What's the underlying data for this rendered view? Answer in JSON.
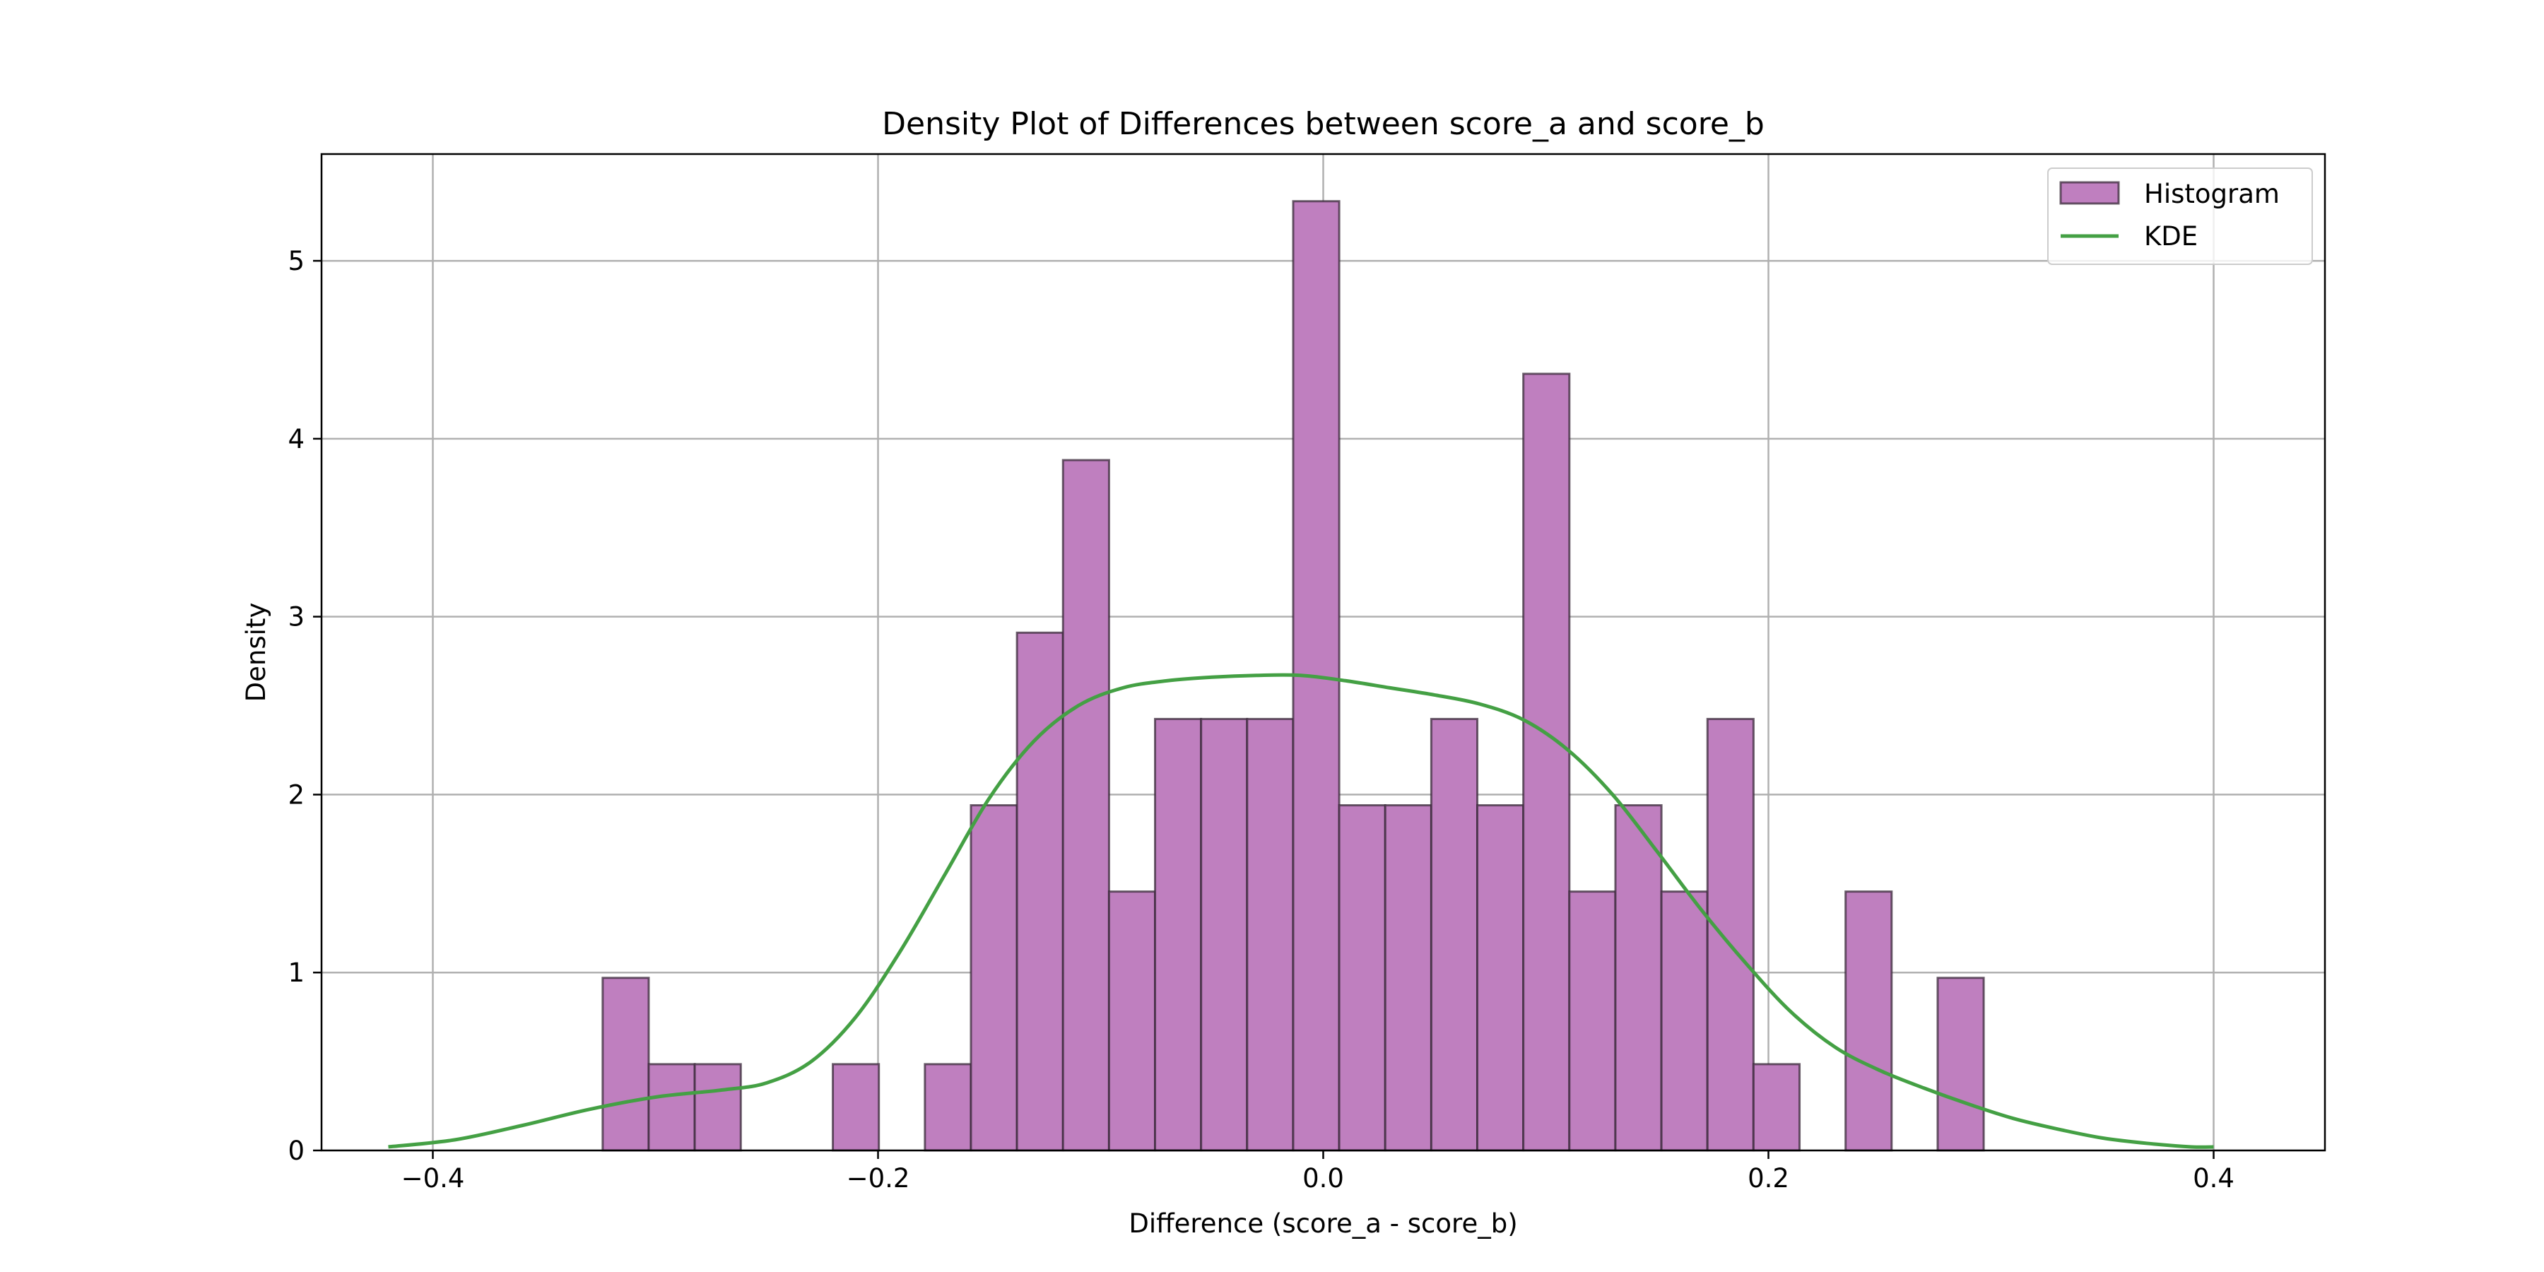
{
  "chart_data": {
    "type": "histogram+kde",
    "title": "Density Plot of Differences between score_a and score_b",
    "xlabel": "Difference (score_a - score_b)",
    "ylabel": "Density",
    "xlim": [
      -0.45,
      0.45
    ],
    "ylim": [
      0,
      5.6
    ],
    "xticks": [
      -0.4,
      -0.2,
      0.0,
      0.2,
      0.4
    ],
    "xtick_labels": [
      "−0.4",
      "−0.2",
      "0.0",
      "0.2",
      "0.4"
    ],
    "yticks": [
      0,
      1,
      2,
      3,
      4,
      5
    ],
    "ytick_labels": [
      "0",
      "1",
      "2",
      "3",
      "4",
      "5"
    ],
    "grid": true,
    "legend": {
      "position": "top-right",
      "entries": [
        "Histogram",
        "KDE"
      ]
    },
    "colors": {
      "bar_fill": "#bf7fbf",
      "bar_edge": "#3a2a3a",
      "kde_line": "#44a044",
      "grid": "#b0b0b0"
    },
    "histogram": {
      "name": "Histogram",
      "bin_start": -0.3237,
      "bin_width": 0.02068,
      "densities": [
        0.97,
        0.485,
        0.485,
        0,
        0,
        0.485,
        0,
        0.485,
        1.94,
        2.91,
        3.88,
        1.455,
        2.425,
        2.425,
        2.425,
        5.335,
        1.94,
        1.94,
        2.425,
        1.94,
        4.365,
        1.455,
        1.94,
        1.455,
        2.425,
        0.485,
        0,
        1.455,
        0,
        0.97
      ]
    },
    "kde": {
      "name": "KDE",
      "x": [
        -0.42,
        -0.39,
        -0.36,
        -0.33,
        -0.3,
        -0.27,
        -0.25,
        -0.23,
        -0.21,
        -0.19,
        -0.17,
        -0.15,
        -0.13,
        -0.11,
        -0.09,
        -0.07,
        -0.05,
        -0.03,
        -0.01,
        0.01,
        0.03,
        0.05,
        0.07,
        0.09,
        0.11,
        0.13,
        0.15,
        0.17,
        0.19,
        0.21,
        0.23,
        0.25,
        0.27,
        0.29,
        0.31,
        0.33,
        0.35,
        0.37,
        0.39,
        0.4
      ],
      "y": [
        0.02,
        0.06,
        0.14,
        0.23,
        0.3,
        0.34,
        0.38,
        0.5,
        0.75,
        1.12,
        1.55,
        1.98,
        2.3,
        2.5,
        2.6,
        2.64,
        2.66,
        2.67,
        2.67,
        2.64,
        2.6,
        2.56,
        2.51,
        2.42,
        2.25,
        2.0,
        1.68,
        1.35,
        1.05,
        0.78,
        0.58,
        0.45,
        0.35,
        0.26,
        0.18,
        0.12,
        0.07,
        0.04,
        0.02,
        0.02
      ]
    }
  }
}
